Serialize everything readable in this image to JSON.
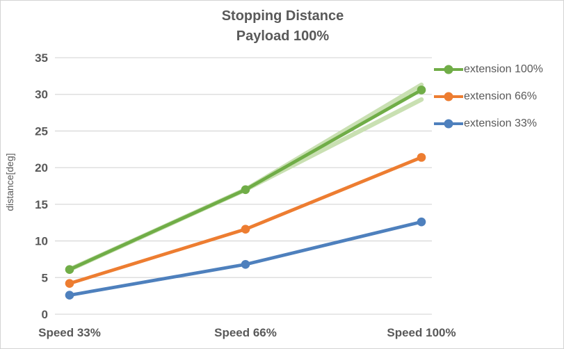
{
  "chart": {
    "title_line1": "Stopping Distance",
    "title_line2": "Payload 100%",
    "y_axis_title": "distance[deg]"
  },
  "chart_data": {
    "type": "line",
    "title": "Stopping Distance",
    "subtitle": "Payload 100%",
    "categories": [
      "Speed 33%",
      "Speed 66%",
      "Speed 100%"
    ],
    "series": [
      {
        "name": "extension 100%",
        "values": [
          6.1,
          17.0,
          30.6
        ],
        "color": "#70AD47",
        "markers": true
      },
      {
        "name": "extension 66%",
        "values": [
          4.2,
          11.6,
          21.4
        ],
        "color": "#ED7D31",
        "markers": true
      },
      {
        "name": "extension 33%",
        "values": [
          2.6,
          6.8,
          12.6
        ],
        "color": "#4E80BD",
        "markers": true
      }
    ],
    "aux_series": [
      {
        "name": "extension 100% band upper",
        "values": [
          6.1,
          17.0,
          31.3
        ],
        "color": "#C9E0B2",
        "markers": false
      },
      {
        "name": "extension 100% band lower",
        "values": [
          6.1,
          17.0,
          29.3
        ],
        "color": "#C9E0B2",
        "markers": false
      }
    ],
    "xlabel": "",
    "ylabel": "distance[deg]",
    "ylim": [
      0,
      35
    ],
    "yticks": [
      0,
      5,
      10,
      15,
      20,
      25,
      30,
      35
    ],
    "grid": true,
    "legend_position": "right",
    "legend": [
      "extension 100%",
      "extension 66%",
      "extension 33%"
    ]
  },
  "colors": {
    "text": "#595959",
    "gridline": "#D9D9D9",
    "border": "#D3D3D3",
    "background": "#FFFFFF"
  }
}
